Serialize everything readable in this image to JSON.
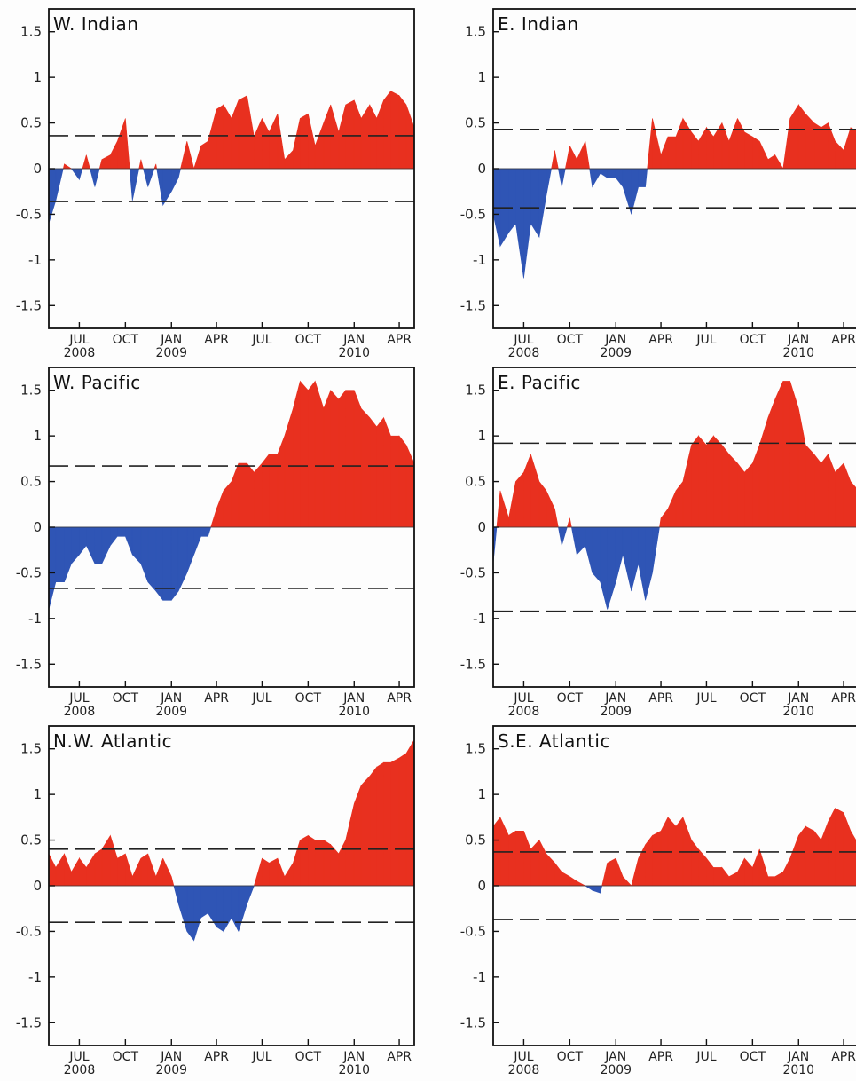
{
  "colors": {
    "positive": "#e8301f",
    "negative": "#2f55b5",
    "frame": "#111111",
    "threshold": "#222222"
  },
  "chart_data": [
    {
      "type": "area",
      "title": "W. Indian",
      "xlabel": "",
      "ylabel": "",
      "xlim": [
        "2008-05-01",
        "2010-05-01"
      ],
      "ylim": [
        -1.75,
        1.75
      ],
      "yticks": [
        "-1.5",
        "-1",
        "-0.5",
        "0",
        "0.5",
        "1",
        "1.5"
      ],
      "xticks": [
        {
          "label": "JUL",
          "sub": "2008"
        },
        {
          "label": "OCT",
          "sub": ""
        },
        {
          "label": "JAN",
          "sub": "2009"
        },
        {
          "label": "APR",
          "sub": ""
        },
        {
          "label": "JUL",
          "sub": ""
        },
        {
          "label": "OCT",
          "sub": ""
        },
        {
          "label": "JAN",
          "sub": "2010"
        },
        {
          "label": "APR",
          "sub": ""
        }
      ],
      "thresholds": [
        0.36,
        -0.36
      ],
      "grid": false,
      "x": [
        "2008-05-01",
        "2008-05-15",
        "2008-06-01",
        "2008-06-15",
        "2008-07-01",
        "2008-07-15",
        "2008-08-01",
        "2008-08-15",
        "2008-09-01",
        "2008-09-15",
        "2008-10-01",
        "2008-10-15",
        "2008-11-01",
        "2008-11-15",
        "2008-12-01",
        "2008-12-15",
        "2009-01-01",
        "2009-01-15",
        "2009-02-01",
        "2009-02-15",
        "2009-03-01",
        "2009-03-15",
        "2009-04-01",
        "2009-04-15",
        "2009-05-01",
        "2009-05-15",
        "2009-06-01",
        "2009-06-15",
        "2009-07-01",
        "2009-07-15",
        "2009-08-01",
        "2009-08-15",
        "2009-09-01",
        "2009-09-15",
        "2009-10-01",
        "2009-10-15",
        "2009-11-01",
        "2009-11-15",
        "2009-12-01",
        "2009-12-15",
        "2010-01-01",
        "2010-01-15",
        "2010-02-01",
        "2010-02-15",
        "2010-03-01",
        "2010-03-15",
        "2010-04-01",
        "2010-04-15",
        "2010-05-01"
      ],
      "y": [
        -0.6,
        -0.35,
        0.05,
        0.0,
        -0.12,
        0.15,
        -0.2,
        0.1,
        0.15,
        0.3,
        0.55,
        -0.35,
        0.1,
        -0.2,
        0.05,
        -0.4,
        -0.25,
        -0.1,
        0.3,
        0.0,
        0.25,
        0.3,
        0.65,
        0.7,
        0.55,
        0.75,
        0.8,
        0.35,
        0.55,
        0.4,
        0.6,
        0.1,
        0.2,
        0.55,
        0.6,
        0.25,
        0.5,
        0.7,
        0.4,
        0.7,
        0.75,
        0.55,
        0.7,
        0.55,
        0.75,
        0.85,
        0.8,
        0.7,
        0.45
      ]
    },
    {
      "type": "area",
      "title": "E. Indian",
      "xlabel": "",
      "ylabel": "",
      "xlim": [
        "2008-05-01",
        "2010-05-01"
      ],
      "ylim": [
        -1.75,
        1.75
      ],
      "yticks": [
        "-1.5",
        "-1",
        "-0.5",
        "0",
        "0.5",
        "1",
        "1.5"
      ],
      "xticks": [
        {
          "label": "JUL",
          "sub": "2008"
        },
        {
          "label": "OCT",
          "sub": ""
        },
        {
          "label": "JAN",
          "sub": "2009"
        },
        {
          "label": "APR",
          "sub": ""
        },
        {
          "label": "JUL",
          "sub": ""
        },
        {
          "label": "OCT",
          "sub": ""
        },
        {
          "label": "JAN",
          "sub": "2010"
        },
        {
          "label": "APR",
          "sub": ""
        }
      ],
      "thresholds": [
        0.43,
        -0.43
      ],
      "grid": false,
      "x": [
        "2008-05-01",
        "2008-05-15",
        "2008-06-01",
        "2008-06-15",
        "2008-07-01",
        "2008-07-15",
        "2008-08-01",
        "2008-08-15",
        "2008-09-01",
        "2008-09-15",
        "2008-10-01",
        "2008-10-15",
        "2008-11-01",
        "2008-11-15",
        "2008-12-01",
        "2008-12-15",
        "2009-01-01",
        "2009-01-15",
        "2009-02-01",
        "2009-02-15",
        "2009-03-01",
        "2009-03-15",
        "2009-04-01",
        "2009-04-15",
        "2009-05-01",
        "2009-05-15",
        "2009-06-01",
        "2009-06-15",
        "2009-07-01",
        "2009-07-15",
        "2009-08-01",
        "2009-08-15",
        "2009-09-01",
        "2009-09-15",
        "2009-10-01",
        "2009-10-15",
        "2009-11-01",
        "2009-11-15",
        "2009-12-01",
        "2009-12-15",
        "2010-01-01",
        "2010-01-15",
        "2010-02-01",
        "2010-02-15",
        "2010-03-01",
        "2010-03-15",
        "2010-04-01",
        "2010-04-15",
        "2010-05-01"
      ],
      "y": [
        -0.5,
        -0.85,
        -0.7,
        -0.6,
        -1.2,
        -0.6,
        -0.75,
        -0.3,
        0.2,
        -0.2,
        0.25,
        0.1,
        0.3,
        -0.2,
        -0.05,
        -0.1,
        -0.1,
        -0.2,
        -0.5,
        -0.2,
        -0.2,
        0.55,
        0.15,
        0.35,
        0.35,
        0.55,
        0.4,
        0.3,
        0.45,
        0.35,
        0.5,
        0.3,
        0.55,
        0.4,
        0.35,
        0.3,
        0.1,
        0.15,
        0.0,
        0.55,
        0.7,
        0.6,
        0.5,
        0.45,
        0.5,
        0.3,
        0.2,
        0.45,
        0.4
      ]
    },
    {
      "type": "area",
      "title": "W. Pacific",
      "xlabel": "",
      "ylabel": "",
      "xlim": [
        "2008-05-01",
        "2010-05-01"
      ],
      "ylim": [
        -1.75,
        1.75
      ],
      "yticks": [
        "-1.5",
        "-1",
        "-0.5",
        "0",
        "0.5",
        "1",
        "1.5"
      ],
      "xticks": [
        {
          "label": "JUL",
          "sub": "2008"
        },
        {
          "label": "OCT",
          "sub": ""
        },
        {
          "label": "JAN",
          "sub": "2009"
        },
        {
          "label": "APR",
          "sub": ""
        },
        {
          "label": "JUL",
          "sub": ""
        },
        {
          "label": "OCT",
          "sub": ""
        },
        {
          "label": "JAN",
          "sub": "2010"
        },
        {
          "label": "APR",
          "sub": ""
        }
      ],
      "thresholds": [
        0.67,
        -0.67
      ],
      "grid": false,
      "x": [
        "2008-05-01",
        "2008-05-15",
        "2008-06-01",
        "2008-06-15",
        "2008-07-01",
        "2008-07-15",
        "2008-08-01",
        "2008-08-15",
        "2008-09-01",
        "2008-09-15",
        "2008-10-01",
        "2008-10-15",
        "2008-11-01",
        "2008-11-15",
        "2008-12-01",
        "2008-12-15",
        "2009-01-01",
        "2009-01-15",
        "2009-02-01",
        "2009-02-15",
        "2009-03-01",
        "2009-03-15",
        "2009-04-01",
        "2009-04-15",
        "2009-05-01",
        "2009-05-15",
        "2009-06-01",
        "2009-06-15",
        "2009-07-01",
        "2009-07-15",
        "2009-08-01",
        "2009-08-15",
        "2009-09-01",
        "2009-09-15",
        "2009-10-01",
        "2009-10-15",
        "2009-11-01",
        "2009-11-15",
        "2009-12-01",
        "2009-12-15",
        "2010-01-01",
        "2010-01-15",
        "2010-02-01",
        "2010-02-15",
        "2010-03-01",
        "2010-03-15",
        "2010-04-01",
        "2010-04-15",
        "2010-05-01"
      ],
      "y": [
        -0.9,
        -0.6,
        -0.6,
        -0.4,
        -0.3,
        -0.2,
        -0.4,
        -0.4,
        -0.2,
        -0.1,
        -0.1,
        -0.3,
        -0.4,
        -0.6,
        -0.7,
        -0.8,
        -0.8,
        -0.7,
        -0.5,
        -0.3,
        -0.1,
        -0.1,
        0.2,
        0.4,
        0.5,
        0.7,
        0.7,
        0.6,
        0.7,
        0.8,
        0.8,
        1.0,
        1.3,
        1.6,
        1.5,
        1.6,
        1.3,
        1.5,
        1.4,
        1.5,
        1.5,
        1.3,
        1.2,
        1.1,
        1.2,
        1.0,
        1.0,
        0.9,
        0.7
      ]
    },
    {
      "type": "area",
      "title": "E. Pacific",
      "xlabel": "",
      "ylabel": "",
      "xlim": [
        "2008-05-01",
        "2010-05-01"
      ],
      "ylim": [
        -1.75,
        1.75
      ],
      "yticks": [
        "-1.5",
        "-1",
        "-0.5",
        "0",
        "0.5",
        "1",
        "1.5"
      ],
      "xticks": [
        {
          "label": "JUL",
          "sub": "2008"
        },
        {
          "label": "OCT",
          "sub": ""
        },
        {
          "label": "JAN",
          "sub": "2009"
        },
        {
          "label": "APR",
          "sub": ""
        },
        {
          "label": "JUL",
          "sub": ""
        },
        {
          "label": "OCT",
          "sub": ""
        },
        {
          "label": "JAN",
          "sub": "2010"
        },
        {
          "label": "APR",
          "sub": ""
        }
      ],
      "thresholds": [
        0.92,
        -0.92
      ],
      "grid": false,
      "x": [
        "2008-05-01",
        "2008-05-15",
        "2008-06-01",
        "2008-06-15",
        "2008-07-01",
        "2008-07-15",
        "2008-08-01",
        "2008-08-15",
        "2008-09-01",
        "2008-09-15",
        "2008-10-01",
        "2008-10-15",
        "2008-11-01",
        "2008-11-15",
        "2008-12-01",
        "2008-12-15",
        "2009-01-01",
        "2009-01-15",
        "2009-02-01",
        "2009-02-15",
        "2009-03-01",
        "2009-03-15",
        "2009-04-01",
        "2009-04-15",
        "2009-05-01",
        "2009-05-15",
        "2009-06-01",
        "2009-06-15",
        "2009-07-01",
        "2009-07-15",
        "2009-08-01",
        "2009-08-15",
        "2009-09-01",
        "2009-09-15",
        "2009-10-01",
        "2009-10-15",
        "2009-11-01",
        "2009-11-15",
        "2009-12-01",
        "2009-12-15",
        "2010-01-01",
        "2010-01-15",
        "2010-02-01",
        "2010-02-15",
        "2010-03-01",
        "2010-03-15",
        "2010-04-01",
        "2010-04-15",
        "2010-05-01"
      ],
      "y": [
        -0.4,
        0.4,
        0.1,
        0.5,
        0.6,
        0.8,
        0.5,
        0.4,
        0.2,
        -0.2,
        0.1,
        -0.3,
        -0.2,
        -0.5,
        -0.6,
        -0.9,
        -0.6,
        -0.3,
        -0.7,
        -0.4,
        -0.8,
        -0.5,
        0.1,
        0.2,
        0.4,
        0.5,
        0.9,
        1.0,
        0.9,
        1.0,
        0.9,
        0.8,
        0.7,
        0.6,
        0.7,
        0.9,
        1.2,
        1.4,
        1.6,
        1.6,
        1.3,
        0.9,
        0.8,
        0.7,
        0.8,
        0.6,
        0.7,
        0.5,
        0.4
      ]
    },
    {
      "type": "area",
      "title": "N.W. Atlantic",
      "xlabel": "",
      "ylabel": "",
      "xlim": [
        "2008-05-01",
        "2010-05-01"
      ],
      "ylim": [
        -1.75,
        1.75
      ],
      "yticks": [
        "-1.5",
        "-1",
        "-0.5",
        "0",
        "0.5",
        "1",
        "1.5"
      ],
      "xticks": [
        {
          "label": "JUL",
          "sub": "2008"
        },
        {
          "label": "OCT",
          "sub": ""
        },
        {
          "label": "JAN",
          "sub": "2009"
        },
        {
          "label": "APR",
          "sub": ""
        },
        {
          "label": "JUL",
          "sub": ""
        },
        {
          "label": "OCT",
          "sub": ""
        },
        {
          "label": "JAN",
          "sub": "2010"
        },
        {
          "label": "APR",
          "sub": ""
        }
      ],
      "thresholds": [
        0.4,
        -0.4
      ],
      "grid": false,
      "x": [
        "2008-05-01",
        "2008-05-15",
        "2008-06-01",
        "2008-06-15",
        "2008-07-01",
        "2008-07-15",
        "2008-08-01",
        "2008-08-15",
        "2008-09-01",
        "2008-09-15",
        "2008-10-01",
        "2008-10-15",
        "2008-11-01",
        "2008-11-15",
        "2008-12-01",
        "2008-12-15",
        "2009-01-01",
        "2009-01-15",
        "2009-02-01",
        "2009-02-15",
        "2009-03-01",
        "2009-03-15",
        "2009-04-01",
        "2009-04-15",
        "2009-05-01",
        "2009-05-15",
        "2009-06-01",
        "2009-06-15",
        "2009-07-01",
        "2009-07-15",
        "2009-08-01",
        "2009-08-15",
        "2009-09-01",
        "2009-09-15",
        "2009-10-01",
        "2009-10-15",
        "2009-11-01",
        "2009-11-15",
        "2009-12-01",
        "2009-12-15",
        "2010-01-01",
        "2010-01-15",
        "2010-02-01",
        "2010-02-15",
        "2010-03-01",
        "2010-03-15",
        "2010-04-01",
        "2010-04-15",
        "2010-05-01"
      ],
      "y": [
        0.35,
        0.2,
        0.35,
        0.15,
        0.3,
        0.2,
        0.35,
        0.4,
        0.55,
        0.3,
        0.35,
        0.1,
        0.3,
        0.35,
        0.1,
        0.3,
        0.1,
        -0.2,
        -0.5,
        -0.6,
        -0.35,
        -0.3,
        -0.45,
        -0.5,
        -0.35,
        -0.5,
        -0.2,
        0.0,
        0.3,
        0.25,
        0.3,
        0.1,
        0.25,
        0.5,
        0.55,
        0.5,
        0.5,
        0.45,
        0.35,
        0.5,
        0.9,
        1.1,
        1.2,
        1.3,
        1.35,
        1.35,
        1.4,
        1.45,
        1.6
      ]
    },
    {
      "type": "area",
      "title": "S.E. Atlantic",
      "xlabel": "",
      "ylabel": "",
      "xlim": [
        "2008-05-01",
        "2010-05-01"
      ],
      "ylim": [
        -1.75,
        1.75
      ],
      "yticks": [
        "-1.5",
        "-1",
        "-0.5",
        "0",
        "0.5",
        "1",
        "1.5"
      ],
      "xticks": [
        {
          "label": "JUL",
          "sub": "2008"
        },
        {
          "label": "OCT",
          "sub": ""
        },
        {
          "label": "JAN",
          "sub": "2009"
        },
        {
          "label": "APR",
          "sub": ""
        },
        {
          "label": "JUL",
          "sub": ""
        },
        {
          "label": "OCT",
          "sub": ""
        },
        {
          "label": "JAN",
          "sub": "2010"
        },
        {
          "label": "APR",
          "sub": ""
        }
      ],
      "thresholds": [
        0.37,
        -0.37
      ],
      "grid": false,
      "x": [
        "2008-05-01",
        "2008-05-15",
        "2008-06-01",
        "2008-06-15",
        "2008-07-01",
        "2008-07-15",
        "2008-08-01",
        "2008-08-15",
        "2008-09-01",
        "2008-09-15",
        "2008-10-01",
        "2008-10-15",
        "2008-11-01",
        "2008-11-15",
        "2008-12-01",
        "2008-12-15",
        "2009-01-01",
        "2009-01-15",
        "2009-02-01",
        "2009-02-15",
        "2009-03-01",
        "2009-03-15",
        "2009-04-01",
        "2009-04-15",
        "2009-05-01",
        "2009-05-15",
        "2009-06-01",
        "2009-06-15",
        "2009-07-01",
        "2009-07-15",
        "2009-08-01",
        "2009-08-15",
        "2009-09-01",
        "2009-09-15",
        "2009-10-01",
        "2009-10-15",
        "2009-11-01",
        "2009-11-15",
        "2009-12-01",
        "2009-12-15",
        "2010-01-01",
        "2010-01-15",
        "2010-02-01",
        "2010-02-15",
        "2010-03-01",
        "2010-03-15",
        "2010-04-01",
        "2010-04-15",
        "2010-05-01"
      ],
      "y": [
        0.65,
        0.75,
        0.55,
        0.6,
        0.6,
        0.4,
        0.5,
        0.35,
        0.25,
        0.15,
        0.1,
        0.05,
        0.0,
        -0.05,
        -0.08,
        0.25,
        0.3,
        0.1,
        0.0,
        0.3,
        0.45,
        0.55,
        0.6,
        0.75,
        0.65,
        0.75,
        0.5,
        0.4,
        0.3,
        0.2,
        0.2,
        0.1,
        0.15,
        0.3,
        0.2,
        0.4,
        0.1,
        0.1,
        0.15,
        0.3,
        0.55,
        0.65,
        0.6,
        0.5,
        0.7,
        0.85,
        0.8,
        0.6,
        0.45
      ]
    }
  ]
}
